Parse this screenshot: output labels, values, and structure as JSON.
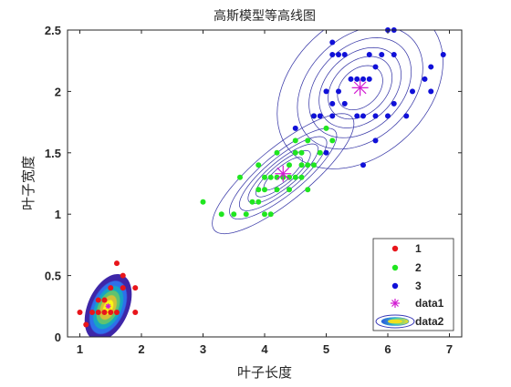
{
  "chart_data": {
    "type": "scatter",
    "title": "高斯模型等高线图",
    "xlabel": "叶子长度",
    "ylabel": "叶子宽度",
    "xlim": [
      0.8,
      7.2
    ],
    "ylim": [
      0,
      2.5
    ],
    "xticks": [
      "1",
      "2",
      "3",
      "4",
      "5",
      "6",
      "7"
    ],
    "yticks": [
      "0",
      "0.5",
      "1",
      "1.5",
      "2",
      "2.5"
    ],
    "grid": false,
    "legend_position": "bottom-right",
    "series": [
      {
        "name": "1",
        "kind": "points",
        "color": "#e8151b",
        "points": [
          [
            1.0,
            0.2
          ],
          [
            1.1,
            0.1
          ],
          [
            1.2,
            0.2
          ],
          [
            1.3,
            0.2
          ],
          [
            1.3,
            0.3
          ],
          [
            1.4,
            0.2
          ],
          [
            1.4,
            0.3
          ],
          [
            1.5,
            0.2
          ],
          [
            1.5,
            0.4
          ],
          [
            1.6,
            0.2
          ],
          [
            1.6,
            0.6
          ],
          [
            1.7,
            0.4
          ],
          [
            1.7,
            0.5
          ],
          [
            1.9,
            0.2
          ],
          [
            1.9,
            0.4
          ]
        ]
      },
      {
        "name": "2",
        "kind": "points",
        "color": "#20e620",
        "points": [
          [
            3.0,
            1.1
          ],
          [
            3.3,
            1.0
          ],
          [
            3.5,
            1.0
          ],
          [
            3.6,
            1.3
          ],
          [
            3.7,
            1.0
          ],
          [
            3.8,
            1.1
          ],
          [
            3.9,
            1.1
          ],
          [
            3.9,
            1.2
          ],
          [
            3.9,
            1.4
          ],
          [
            4.0,
            1.0
          ],
          [
            4.0,
            1.2
          ],
          [
            4.0,
            1.3
          ],
          [
            4.1,
            1.0
          ],
          [
            4.1,
            1.3
          ],
          [
            4.2,
            1.2
          ],
          [
            4.2,
            1.3
          ],
          [
            4.2,
            1.5
          ],
          [
            4.3,
            1.3
          ],
          [
            4.4,
            1.2
          ],
          [
            4.4,
            1.3
          ],
          [
            4.4,
            1.4
          ],
          [
            4.5,
            1.3
          ],
          [
            4.5,
            1.5
          ],
          [
            4.5,
            1.6
          ],
          [
            4.6,
            1.3
          ],
          [
            4.6,
            1.4
          ],
          [
            4.6,
            1.5
          ],
          [
            4.7,
            1.2
          ],
          [
            4.7,
            1.4
          ],
          [
            4.7,
            1.6
          ],
          [
            4.8,
            1.4
          ],
          [
            4.8,
            1.8
          ],
          [
            4.9,
            1.5
          ],
          [
            5.0,
            1.7
          ],
          [
            5.1,
            1.6
          ]
        ]
      },
      {
        "name": "3",
        "kind": "points",
        "color": "#1010d8",
        "points": [
          [
            4.5,
            1.7
          ],
          [
            4.8,
            1.8
          ],
          [
            4.9,
            1.8
          ],
          [
            5.0,
            1.5
          ],
          [
            5.0,
            2.0
          ],
          [
            5.1,
            1.8
          ],
          [
            5.1,
            1.9
          ],
          [
            5.1,
            2.3
          ],
          [
            5.1,
            2.4
          ],
          [
            5.2,
            2.0
          ],
          [
            5.2,
            2.3
          ],
          [
            5.3,
            1.9
          ],
          [
            5.3,
            2.3
          ],
          [
            5.4,
            2.1
          ],
          [
            5.5,
            1.8
          ],
          [
            5.5,
            2.1
          ],
          [
            5.6,
            1.4
          ],
          [
            5.6,
            1.8
          ],
          [
            5.6,
            2.1
          ],
          [
            5.7,
            2.1
          ],
          [
            5.7,
            2.3
          ],
          [
            5.8,
            1.6
          ],
          [
            5.8,
            1.8
          ],
          [
            5.8,
            2.2
          ],
          [
            5.9,
            2.3
          ],
          [
            6.0,
            1.8
          ],
          [
            6.0,
            2.5
          ],
          [
            6.1,
            1.9
          ],
          [
            6.1,
            2.3
          ],
          [
            6.1,
            2.5
          ],
          [
            6.3,
            1.8
          ],
          [
            6.4,
            2.0
          ],
          [
            6.6,
            2.1
          ],
          [
            6.7,
            2.0
          ],
          [
            6.7,
            2.2
          ],
          [
            6.9,
            2.3
          ]
        ]
      },
      {
        "name": "data1",
        "kind": "centers",
        "color": "#d21bd2",
        "points": [
          [
            1.46,
            0.25
          ],
          [
            4.3,
            1.33
          ],
          [
            5.55,
            2.03
          ]
        ]
      },
      {
        "name": "data2",
        "kind": "contours",
        "components": [
          {
            "mean": [
              1.46,
              0.24
            ],
            "sx": 0.21,
            "sy": 0.15,
            "rho": 0.4,
            "levels": [
              0.2,
              0.35,
              0.5,
              0.65,
              0.8,
              0.92
            ],
            "style": "filled"
          },
          {
            "mean": [
              4.3,
              1.33
            ],
            "sx": 0.47,
            "sy": 0.2,
            "rho": 0.83,
            "levels": [
              0.05,
              0.18,
              0.32,
              0.48,
              0.64,
              0.8
            ],
            "style": "lines"
          },
          {
            "mean": [
              5.55,
              2.03
            ],
            "sx": 0.55,
            "sy": 0.27,
            "rho": 0.32,
            "levels": [
              0.05,
              0.18,
              0.32,
              0.48,
              0.64,
              0.8
            ],
            "style": "lines"
          }
        ]
      }
    ]
  }
}
